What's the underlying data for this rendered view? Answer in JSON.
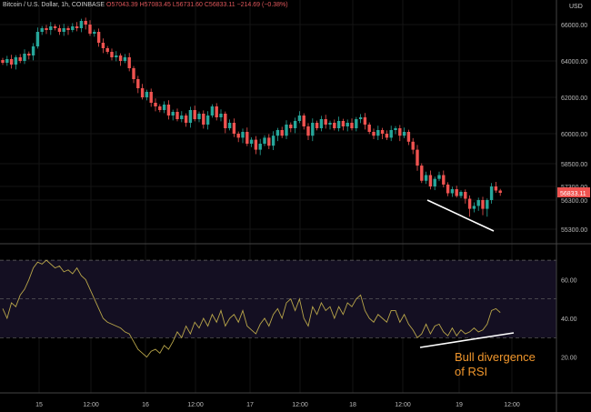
{
  "header": {
    "symbol": "Bitcoin / U.S. Dollar, 1h, COINBASE",
    "open": "O57043.39",
    "high": "H57083.45",
    "low": "L56731.60",
    "close": "C56833.11",
    "change": "−214.69 (−0.38%)"
  },
  "currency": "USD",
  "colors": {
    "up": "#26a69a",
    "down": "#ef5350",
    "rsi": "#b9a64a",
    "rsi_band": "#140f22",
    "annotation": "#ffffff",
    "annotation_text": "#f0962c",
    "background": "#000000"
  },
  "chart_data": [
    {
      "type": "candlestick",
      "title": "",
      "price_ticks": [
        "66000.00",
        "64000.00",
        "62000.00",
        "60000.00",
        "58500.00",
        "57300.00",
        "56300.00",
        "55300.00"
      ],
      "last_price": "56833.11",
      "x_ticks": [
        "15",
        "12:00",
        "16",
        "12:00",
        "17",
        "12:00",
        "18",
        "12:00",
        "19",
        "12:00"
      ],
      "closes": [
        63900,
        64100,
        63800,
        64200,
        64000,
        64400,
        64300,
        64800,
        65600,
        65800,
        65700,
        65900,
        65800,
        65600,
        65800,
        65700,
        65900,
        65800,
        66200,
        66000,
        65500,
        65600,
        65000,
        64700,
        64500,
        64200,
        64300,
        64000,
        64200,
        63600,
        63000,
        62500,
        62000,
        62300,
        61700,
        61500,
        61300,
        61600,
        61000,
        61200,
        60800,
        61000,
        60600,
        61300,
        60800,
        61100,
        60500,
        61000,
        61500,
        60900,
        61100,
        60300,
        60600,
        60000,
        59800,
        60100,
        59500,
        59700,
        59200,
        59500,
        59800,
        59400,
        59900,
        60200,
        59900,
        60500,
        60300,
        60700,
        61000,
        60400,
        59900,
        60600,
        60300,
        60800,
        60500,
        60600,
        60300,
        60700,
        60400,
        60600,
        60300,
        60800,
        60900,
        60500,
        60100,
        59900,
        60200,
        60000,
        59800,
        60200,
        60300,
        59900,
        60100,
        59600,
        59200,
        58400,
        57600,
        57900,
        57300,
        57700,
        57900,
        57400,
        56800,
        57100,
        56600,
        56900,
        56400,
        56000,
        56100,
        56300,
        56000,
        56300,
        57300,
        57000,
        56833
      ]
    },
    {
      "type": "line",
      "title": "",
      "rsi_ticks": [
        "60.00",
        "40.00",
        "20.00"
      ],
      "band": [
        30,
        70
      ],
      "midline": 50,
      "values": [
        45,
        40,
        48,
        46,
        52,
        55,
        60,
        66,
        69,
        68,
        70,
        68,
        66,
        67,
        64,
        65,
        63,
        66,
        62,
        60,
        55,
        50,
        45,
        40,
        38,
        37,
        36,
        35,
        33,
        32,
        28,
        24,
        22,
        20,
        23,
        24,
        22,
        26,
        24,
        28,
        33,
        30,
        36,
        32,
        38,
        35,
        40,
        36,
        42,
        38,
        44,
        36,
        40,
        42,
        38,
        44,
        36,
        34,
        32,
        37,
        40,
        36,
        42,
        45,
        40,
        48,
        50,
        44,
        50,
        40,
        36,
        46,
        42,
        48,
        44,
        46,
        40,
        46,
        42,
        48,
        46,
        50,
        52,
        44,
        40,
        38,
        42,
        40,
        38,
        44,
        44,
        38,
        42,
        37,
        34,
        30,
        32,
        37,
        32,
        36,
        37,
        33,
        31,
        35,
        31,
        34,
        32,
        33,
        35,
        33,
        34,
        37,
        44,
        45,
        43
      ],
      "annotation": "Bull divergence",
      "annotation_line2": "of RSI"
    }
  ]
}
